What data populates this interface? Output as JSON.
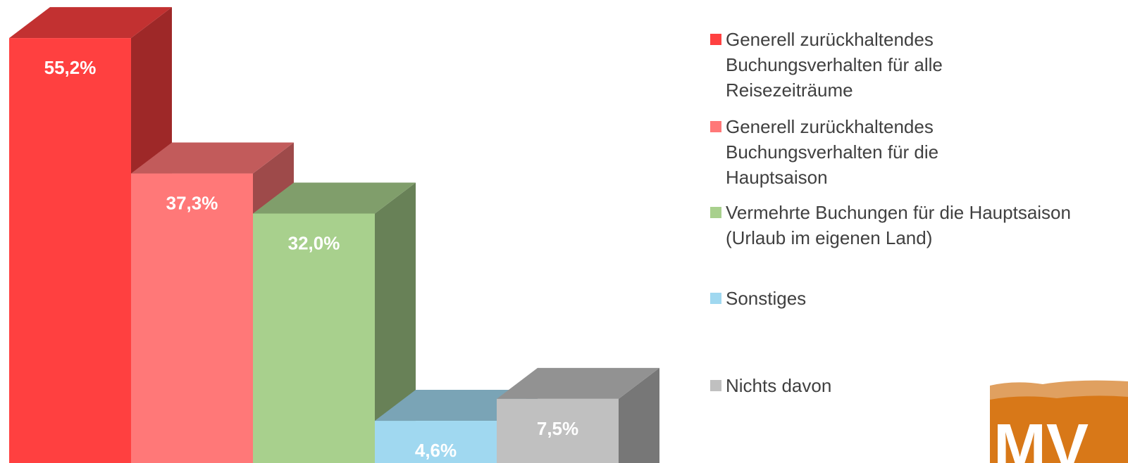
{
  "chart_data": {
    "type": "bar3d",
    "categories": [
      "Generell zurückhaltendes Buchungsverhalten für alle Reisezeiträume",
      "Generell zurückhaltendes Buchungsverhalten für die Hauptsaison",
      "Vermehrte Buchungen für die Hauptsaison (Urlaub im eigenen Land)",
      "Sonstiges",
      "Nichts davon"
    ],
    "values": [
      55.2,
      37.3,
      32.0,
      4.6,
      7.5
    ],
    "value_labels": [
      "55,2%",
      "37,3%",
      "32,0%",
      "4,6%",
      "7,5%"
    ],
    "colors": [
      "#ff4040",
      "#ff7878",
      "#a8d08d",
      "#a0d8f0",
      "#c0c0c0"
    ],
    "logo": "MV"
  }
}
